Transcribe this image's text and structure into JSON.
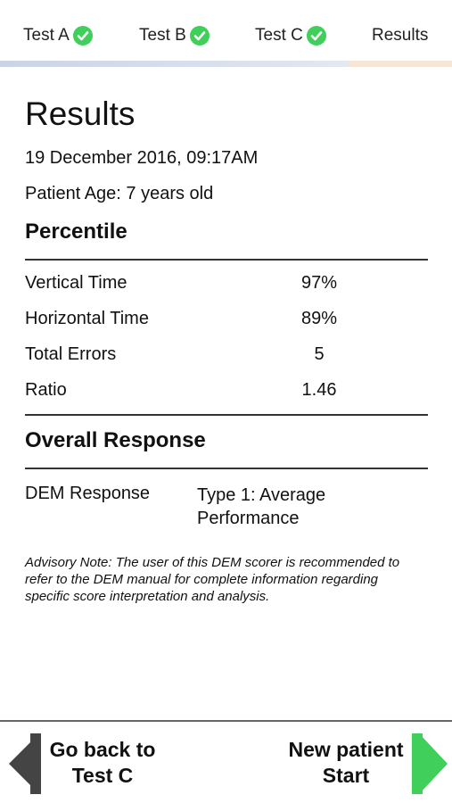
{
  "tabs": [
    {
      "label": "Test A",
      "completed": true
    },
    {
      "label": "Test B",
      "completed": true
    },
    {
      "label": "Test C",
      "completed": true
    },
    {
      "label": "Results",
      "completed": false,
      "active": true
    }
  ],
  "colors": {
    "check_green": "#3fcf5a",
    "next_arrow": "#3fcf5a",
    "back_arrow": "#444444",
    "tab_active_underline": "#f5e6d6"
  },
  "results": {
    "title": "Results",
    "date": "19 December 2016, 09:17AM",
    "patient_age": "Patient Age: 7 years old",
    "percentile_title": "Percentile",
    "stats": [
      {
        "label": "Vertical Time",
        "value": "97%"
      },
      {
        "label": "Horizontal Time",
        "value": "89%"
      },
      {
        "label": "Total Errors",
        "value": "5"
      },
      {
        "label": "Ratio",
        "value": "1.46"
      }
    ],
    "overall_title": "Overall Response",
    "dem_label": "DEM Response",
    "dem_value_line1": "Type 1: Average",
    "dem_value_line2": "Performance",
    "advisory": "Advisory Note: The user of this DEM scorer is recommended to refer to the DEM manual for complete information regarding specific score interpretation and analysis."
  },
  "nav": {
    "back_line1": "Go back to",
    "back_line2": "Test C",
    "next_line1": "New patient",
    "next_line2": "Start"
  }
}
